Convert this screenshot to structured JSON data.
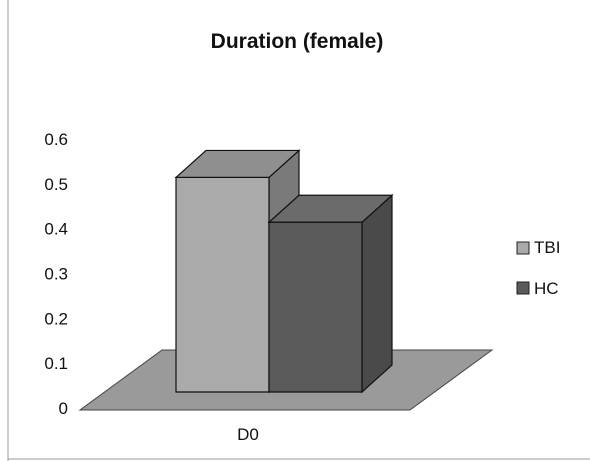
{
  "chart_data": {
    "type": "bar",
    "title": "Duration (female)",
    "categories": [
      "D0"
    ],
    "series": [
      {
        "name": "TBI",
        "values": [
          0.55
        ],
        "color": "#aaaaaa"
      },
      {
        "name": "HC",
        "values": [
          0.45
        ],
        "color": "#5a5a5a"
      }
    ],
    "y_ticks": [
      "0",
      "0.1",
      "0.2",
      "0.3",
      "0.4",
      "0.5",
      "0.6"
    ],
    "ylim": [
      0,
      0.6
    ],
    "grid": false,
    "legend": "right",
    "three_d": true
  }
}
